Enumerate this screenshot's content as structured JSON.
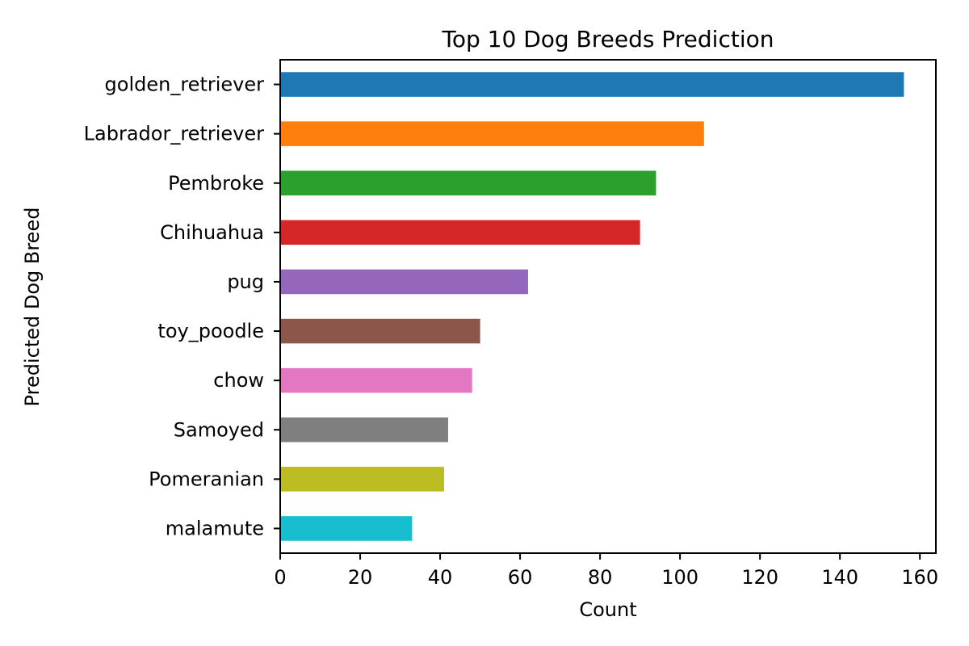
{
  "chart_data": {
    "type": "bar",
    "orientation": "horizontal",
    "title": "Top 10 Dog Breeds Prediction",
    "xlabel": "Count",
    "ylabel": "Predicted Dog Breed",
    "categories": [
      "golden_retriever",
      "Labrador_retriever",
      "Pembroke",
      "Chihuahua",
      "pug",
      "toy_poodle",
      "chow",
      "Samoyed",
      "Pomeranian",
      "malamute"
    ],
    "values": [
      156,
      106,
      94,
      90,
      62,
      50,
      48,
      42,
      41,
      33
    ],
    "colors": [
      "#1f77b4",
      "#ff7f0e",
      "#2ca02c",
      "#d62728",
      "#9467bd",
      "#8c564b",
      "#e377c2",
      "#7f7f7f",
      "#bcbd22",
      "#17becf"
    ],
    "xlim": [
      0,
      164
    ],
    "xticks": [
      "0",
      "20",
      "40",
      "60",
      "80",
      "100",
      "120",
      "140",
      "160"
    ],
    "grid": false,
    "legend": "none"
  }
}
